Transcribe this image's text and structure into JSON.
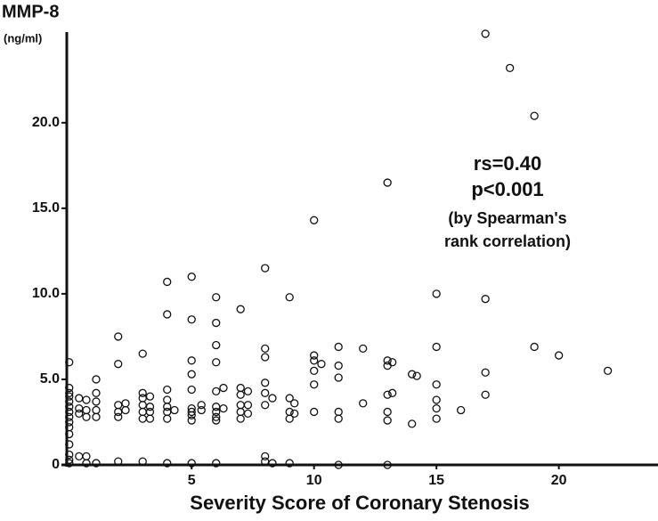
{
  "chart_data": {
    "type": "scatter",
    "title": "MMP-8",
    "y_unit": "(ng/ml)",
    "x_label": "Severity Score of Coronary Stenosis",
    "annotations": [
      "rs=0.40",
      "p<0.001",
      "(by Spearman's",
      "rank correlation)"
    ],
    "color": "#111111",
    "xlim": [
      -0.1,
      24.05
    ],
    "ylim": [
      0,
      25.3
    ],
    "xticks": [
      5,
      10,
      15,
      20
    ],
    "yticks": [
      0,
      {
        "value": 5,
        "label": "5.0"
      },
      {
        "value": 10,
        "label": "10.0"
      },
      {
        "value": 15,
        "label": "15.0"
      },
      {
        "value": 20,
        "label": "20.0"
      }
    ],
    "x": [
      0,
      0,
      0,
      0,
      0,
      0,
      0,
      0,
      0,
      0,
      0,
      0,
      0,
      0,
      0,
      0.4,
      0.4,
      0.4,
      0.4,
      0.7,
      0.7,
      0.7,
      0.7,
      0.7,
      1.1,
      1.1,
      1.1,
      1.1,
      1.1,
      1.1,
      2,
      2,
      2,
      2,
      2,
      2,
      2.3,
      2.3,
      3,
      3,
      3,
      3,
      3,
      3,
      3,
      3.3,
      3.3,
      3.3,
      3.3,
      4,
      4,
      4,
      4,
      4,
      4,
      4,
      4,
      4.3,
      5,
      5,
      5,
      5,
      5,
      5,
      5,
      5,
      5,
      5,
      5.4,
      5.4,
      6,
      6,
      6,
      6,
      6,
      6,
      6,
      6,
      6,
      6,
      6.3,
      6.3,
      7,
      7,
      7,
      7,
      7,
      7,
      7.3,
      7.3,
      7.3,
      8,
      8,
      8,
      8,
      8,
      8,
      8,
      8,
      8.3,
      8.3,
      9,
      9,
      9,
      9,
      9,
      9.2,
      9.2,
      10,
      10,
      10,
      10,
      10,
      10,
      10.3,
      11,
      11,
      11,
      11,
      11,
      11,
      12,
      12,
      13,
      13,
      13,
      13,
      13,
      13,
      13,
      13.2,
      13.2,
      14,
      14,
      14.2,
      15,
      15,
      15,
      15,
      15,
      15,
      16,
      17,
      17,
      17,
      17,
      18,
      19,
      19,
      20,
      22
    ],
    "values": [
      6.0,
      4.5,
      4.2,
      4.0,
      3.7,
      3.4,
      3.1,
      2.8,
      2.5,
      2.2,
      1.8,
      1.2,
      0.6,
      0.3,
      0.1,
      3.9,
      3.3,
      3.0,
      0.5,
      3.8,
      3.2,
      2.8,
      0.5,
      0.1,
      5.0,
      4.2,
      3.7,
      3.2,
      2.8,
      0.1,
      7.5,
      5.9,
      3.5,
      3.1,
      2.8,
      0.2,
      3.6,
      3.2,
      6.5,
      4.2,
      3.9,
      3.5,
      3.1,
      2.7,
      0.2,
      4.0,
      3.4,
      3.1,
      2.7,
      10.7,
      8.8,
      4.4,
      3.8,
      3.4,
      3.1,
      2.7,
      0.1,
      3.2,
      11.0,
      8.5,
      6.1,
      5.3,
      4.4,
      3.3,
      3.1,
      2.9,
      2.6,
      0.1,
      3.5,
      3.2,
      9.8,
      8.3,
      7.0,
      6.0,
      4.3,
      3.4,
      3.1,
      2.8,
      2.6,
      0.1,
      4.5,
      3.3,
      9.1,
      4.5,
      4.1,
      3.5,
      3.1,
      2.7,
      4.3,
      3.5,
      3.0,
      11.5,
      6.8,
      6.3,
      4.8,
      4.2,
      3.5,
      0.5,
      0.2,
      3.9,
      0.1,
      9.8,
      3.9,
      3.1,
      2.7,
      0.1,
      3.6,
      3.0,
      14.3,
      6.4,
      6.1,
      5.5,
      4.7,
      3.1,
      5.9,
      6.9,
      5.8,
      5.1,
      3.1,
      2.7,
      0,
      6.8,
      3.6,
      16.5,
      6.1,
      5.8,
      4.1,
      3.1,
      2.6,
      0,
      6.0,
      4.2,
      5.3,
      2.4,
      5.2,
      10.0,
      6.9,
      4.7,
      3.8,
      3.3,
      2.7,
      3.2,
      25.2,
      9.7,
      5.4,
      4.1,
      23.2,
      20.4,
      6.9,
      6.4,
      5.5
    ]
  }
}
